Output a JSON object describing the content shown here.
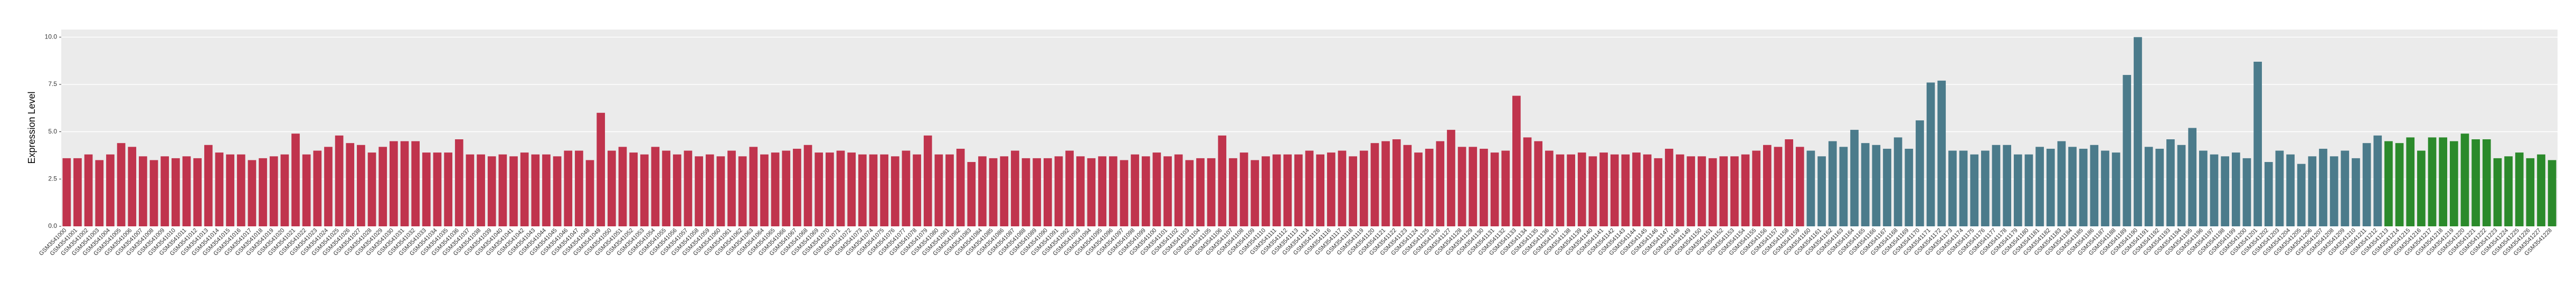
{
  "chart_data": {
    "type": "bar",
    "y_label": "Expression Level",
    "ylim": [
      0,
      10.4
    ],
    "yticks": [
      {
        "value": 0,
        "label": "0.0"
      },
      {
        "value": 2.5,
        "label": "2.5"
      },
      {
        "value": 5,
        "label": "5.0"
      },
      {
        "value": 7.5,
        "label": "7.5"
      },
      {
        "value": 10,
        "label": "10.0"
      }
    ],
    "grid": true,
    "categories": [
      "GSM3541000",
      "GSM3541001",
      "GSM3541002",
      "GSM3541003",
      "GSM3541004",
      "GSM3541005",
      "GSM3541006",
      "GSM3541007",
      "GSM3541008",
      "GSM3541009",
      "GSM3541010",
      "GSM3541011",
      "GSM3541012",
      "GSM3541013",
      "GSM3541014",
      "GSM3541015",
      "GSM3541016",
      "GSM3541017",
      "GSM3541018",
      "GSM3541019",
      "GSM3541020",
      "GSM3541021",
      "GSM3541022",
      "GSM3541023",
      "GSM3541024",
      "GSM3541025",
      "GSM3541026",
      "GSM3541027",
      "GSM3541028",
      "GSM3541029",
      "GSM3541030",
      "GSM3541031",
      "GSM3541032",
      "GSM3541033",
      "GSM3541034",
      "GSM3541035",
      "GSM3541036",
      "GSM3541037",
      "GSM3541038",
      "GSM3541039",
      "GSM3541040",
      "GSM3541041",
      "GSM3541042",
      "GSM3541043",
      "GSM3541044",
      "GSM3541045",
      "GSM3541046",
      "GSM3541047",
      "GSM3541048",
      "GSM3541049",
      "GSM3541050",
      "GSM3541051",
      "GSM3541052",
      "GSM3541053",
      "GSM3541054",
      "GSM3541055",
      "GSM3541056",
      "GSM3541057",
      "GSM3541058",
      "GSM3541059",
      "GSM3541060",
      "GSM3541061",
      "GSM3541062",
      "GSM3541063",
      "GSM3541064",
      "GSM3541065",
      "GSM3541066",
      "GSM3541067",
      "GSM3541068",
      "GSM3541069",
      "GSM3541070",
      "GSM3541071",
      "GSM3541072",
      "GSM3541073",
      "GSM3541074",
      "GSM3541075",
      "GSM3541076",
      "GSM3541077",
      "GSM3541078",
      "GSM3541079",
      "GSM3541080",
      "GSM3541081",
      "GSM3541082",
      "GSM3541083",
      "GSM3541084",
      "GSM3541085",
      "GSM3541086",
      "GSM3541087",
      "GSM3541088",
      "GSM3541089",
      "GSM3541090",
      "GSM3541091",
      "GSM3541092",
      "GSM3541093",
      "GSM3541094",
      "GSM3541095",
      "GSM3541096",
      "GSM3541097",
      "GSM3541098",
      "GSM3541099",
      "GSM3541100",
      "GSM3541101",
      "GSM3541102",
      "GSM3541103",
      "GSM3541104",
      "GSM3541105",
      "GSM3541106",
      "GSM3541107",
      "GSM3541108",
      "GSM3541109",
      "GSM3541110",
      "GSM3541111",
      "GSM3541112",
      "GSM3541113",
      "GSM3541114",
      "GSM3541115",
      "GSM3541116",
      "GSM3541117",
      "GSM3541118",
      "GSM3541119",
      "GSM3541120",
      "GSM3541121",
      "GSM3541122",
      "GSM3541123",
      "GSM3541124",
      "GSM3541125",
      "GSM3541126",
      "GSM3541127",
      "GSM3541128",
      "GSM3541129",
      "GSM3541130",
      "GSM3541131",
      "GSM3541132",
      "GSM3541133",
      "GSM3541134",
      "GSM3541135",
      "GSM3541136",
      "GSM3541137",
      "GSM3541138",
      "GSM3541139",
      "GSM3541140",
      "GSM3541141",
      "GSM3541142",
      "GSM3541143",
      "GSM3541144",
      "GSM3541145",
      "GSM3541146",
      "GSM3541147",
      "GSM3541148",
      "GSM3541149",
      "GSM3541150",
      "GSM3541151",
      "GSM3541152",
      "GSM3541153",
      "GSM3541154",
      "GSM3541155",
      "GSM3541156",
      "GSM3541157",
      "GSM3541158",
      "GSM3541159",
      "GSM3541160",
      "GSM3541161",
      "GSM3541162",
      "GSM3541163",
      "GSM3541164",
      "GSM3541165",
      "GSM3541166",
      "GSM3541167",
      "GSM3541168",
      "GSM3541169",
      "GSM3541170",
      "GSM3541171",
      "GSM3541172",
      "GSM3541173",
      "GSM3541174",
      "GSM3541175",
      "GSM3541176",
      "GSM3541177",
      "GSM3541178",
      "GSM3541179",
      "GSM3541180",
      "GSM3541181",
      "GSM3541182",
      "GSM3541183",
      "GSM3541184",
      "GSM3541185",
      "GSM3541186",
      "GSM3541187",
      "GSM3541188",
      "GSM3541189",
      "GSM3541190",
      "GSM3541191",
      "GSM3541192",
      "GSM3541193",
      "GSM3541194",
      "GSM3541195",
      "GSM3541196",
      "GSM3541197",
      "GSM3541198",
      "GSM3541199",
      "GSM3541200",
      "GSM3541201",
      "GSM3541202",
      "GSM3541203",
      "GSM3541204",
      "GSM3541205",
      "GSM3541206",
      "GSM3541207",
      "GSM3541208",
      "GSM3541209",
      "GSM3541210",
      "GSM3541211",
      "GSM3541212",
      "GSM3541213",
      "GSM3541214",
      "GSM3541215",
      "GSM3541216",
      "GSM3541217",
      "GSM3541218",
      "GSM3541219",
      "GSM3541220",
      "GSM3541221",
      "GSM3541222",
      "GSM3541223",
      "GSM3541224",
      "GSM3541225",
      "GSM3541226",
      "GSM3541227",
      "GSM3541228"
    ],
    "values": [
      3.6,
      3.6,
      3.8,
      3.5,
      3.8,
      4.4,
      4.2,
      3.7,
      3.5,
      3.7,
      3.6,
      3.7,
      3.6,
      4.3,
      3.9,
      3.8,
      3.8,
      3.5,
      3.6,
      3.7,
      3.8,
      4.9,
      3.8,
      4.0,
      4.2,
      4.8,
      4.4,
      4.3,
      3.9,
      4.2,
      4.5,
      4.5,
      4.5,
      3.9,
      3.9,
      3.9,
      4.6,
      3.8,
      3.8,
      3.7,
      3.8,
      3.7,
      3.9,
      3.8,
      3.8,
      3.7,
      4.0,
      4.0,
      3.5,
      6.0,
      4.0,
      4.2,
      3.9,
      3.8,
      4.2,
      4.0,
      3.8,
      4.0,
      3.7,
      3.8,
      3.7,
      4.0,
      3.7,
      4.2,
      3.8,
      3.9,
      4.0,
      4.1,
      4.3,
      3.9,
      3.9,
      4.0,
      3.9,
      3.8,
      3.8,
      3.8,
      3.7,
      4.0,
      3.8,
      4.8,
      3.8,
      3.8,
      4.1,
      3.4,
      3.7,
      3.6,
      3.7,
      4.0,
      3.6,
      3.6,
      3.6,
      3.7,
      4.0,
      3.7,
      3.6,
      3.7,
      3.7,
      3.5,
      3.8,
      3.7,
      3.9,
      3.7,
      3.8,
      3.5,
      3.6,
      3.6,
      4.8,
      3.6,
      3.9,
      3.5,
      3.7,
      3.8,
      3.8,
      3.8,
      4.0,
      3.8,
      3.9,
      4.0,
      3.7,
      4.0,
      4.4,
      4.5,
      4.6,
      4.3,
      3.9,
      4.1,
      4.5,
      5.1,
      4.2,
      4.2,
      4.1,
      3.9,
      4.0,
      6.9,
      4.7,
      4.5,
      4.0,
      3.8,
      3.8,
      3.9,
      3.7,
      3.9,
      3.8,
      3.8,
      3.9,
      3.8,
      3.6,
      4.1,
      3.8,
      3.7,
      3.7,
      3.6,
      3.7,
      3.7,
      3.8,
      4.0,
      4.3,
      4.2,
      4.6,
      4.2,
      4.0,
      3.7,
      4.5,
      4.2,
      5.1,
      4.4,
      4.3,
      4.1,
      4.7,
      4.1,
      5.6,
      7.6,
      7.7,
      4.0,
      4.0,
      3.8,
      4.0,
      4.3,
      4.3,
      3.8,
      3.8,
      4.2,
      4.1,
      4.5,
      4.2,
      4.1,
      4.3,
      4.0,
      3.9,
      8.0,
      10.0,
      4.2,
      4.1,
      4.6,
      4.3,
      5.2,
      4.0,
      3.8,
      3.7,
      3.9,
      3.6,
      8.7,
      3.4,
      4.0,
      3.8,
      3.3,
      3.7,
      4.1,
      3.7,
      4.0,
      3.6,
      4.4,
      4.8,
      4.5,
      4.4,
      4.7,
      4.0,
      4.7,
      4.7,
      4.5,
      4.9,
      4.6,
      4.6,
      3.6,
      3.7,
      3.9,
      3.6,
      3.8,
      3.5
    ],
    "colors": [
      "#c0344d",
      "#c0344d",
      "#c0344d",
      "#c0344d",
      "#c0344d",
      "#c0344d",
      "#c0344d",
      "#c0344d",
      "#c0344d",
      "#c0344d",
      "#c0344d",
      "#c0344d",
      "#c0344d",
      "#c0344d",
      "#c0344d",
      "#c0344d",
      "#c0344d",
      "#c0344d",
      "#c0344d",
      "#c0344d",
      "#c0344d",
      "#c0344d",
      "#c0344d",
      "#c0344d",
      "#c0344d",
      "#c0344d",
      "#c0344d",
      "#c0344d",
      "#c0344d",
      "#c0344d",
      "#c0344d",
      "#c0344d",
      "#c0344d",
      "#c0344d",
      "#c0344d",
      "#c0344d",
      "#c0344d",
      "#c0344d",
      "#c0344d",
      "#c0344d",
      "#c0344d",
      "#c0344d",
      "#c0344d",
      "#c0344d",
      "#c0344d",
      "#c0344d",
      "#c0344d",
      "#c0344d",
      "#c0344d",
      "#c0344d",
      "#c0344d",
      "#c0344d",
      "#c0344d",
      "#c0344d",
      "#c0344d",
      "#c0344d",
      "#c0344d",
      "#c0344d",
      "#c0344d",
      "#c0344d",
      "#c0344d",
      "#c0344d",
      "#c0344d",
      "#c0344d",
      "#c0344d",
      "#c0344d",
      "#c0344d",
      "#c0344d",
      "#c0344d",
      "#c0344d",
      "#c0344d",
      "#c0344d",
      "#c0344d",
      "#c0344d",
      "#c0344d",
      "#c0344d",
      "#c0344d",
      "#c0344d",
      "#c0344d",
      "#c0344d",
      "#c0344d",
      "#c0344d",
      "#c0344d",
      "#c0344d",
      "#c0344d",
      "#c0344d",
      "#c0344d",
      "#c0344d",
      "#c0344d",
      "#c0344d",
      "#c0344d",
      "#c0344d",
      "#c0344d",
      "#c0344d",
      "#c0344d",
      "#c0344d",
      "#c0344d",
      "#c0344d",
      "#c0344d",
      "#c0344d",
      "#c0344d",
      "#c0344d",
      "#c0344d",
      "#c0344d",
      "#c0344d",
      "#c0344d",
      "#c0344d",
      "#c0344d",
      "#c0344d",
      "#c0344d",
      "#c0344d",
      "#c0344d",
      "#c0344d",
      "#c0344d",
      "#c0344d",
      "#c0344d",
      "#c0344d",
      "#c0344d",
      "#c0344d",
      "#c0344d",
      "#c0344d",
      "#c0344d",
      "#c0344d",
      "#c0344d",
      "#c0344d",
      "#c0344d",
      "#c0344d",
      "#c0344d",
      "#c0344d",
      "#c0344d",
      "#c0344d",
      "#c0344d",
      "#c0344d",
      "#c0344d",
      "#c0344d",
      "#c0344d",
      "#c0344d",
      "#c0344d",
      "#c0344d",
      "#c0344d",
      "#c0344d",
      "#c0344d",
      "#c0344d",
      "#c0344d",
      "#c0344d",
      "#c0344d",
      "#c0344d",
      "#c0344d",
      "#c0344d",
      "#c0344d",
      "#c0344d",
      "#c0344d",
      "#c0344d",
      "#c0344d",
      "#c0344d",
      "#c0344d",
      "#c0344d",
      "#c0344d",
      "#c0344d",
      "#c0344d",
      "#4b7b8b",
      "#4b7b8b",
      "#4b7b8b",
      "#4b7b8b",
      "#4b7b8b",
      "#4b7b8b",
      "#4b7b8b",
      "#4b7b8b",
      "#4b7b8b",
      "#4b7b8b",
      "#4b7b8b",
      "#4b7b8b",
      "#4b7b8b",
      "#4b7b8b",
      "#4b7b8b",
      "#4b7b8b",
      "#4b7b8b",
      "#4b7b8b",
      "#4b7b8b",
      "#4b7b8b",
      "#4b7b8b",
      "#4b7b8b",
      "#4b7b8b",
      "#4b7b8b",
      "#4b7b8b",
      "#4b7b8b",
      "#4b7b8b",
      "#4b7b8b",
      "#4b7b8b",
      "#4b7b8b",
      "#4b7b8b",
      "#4b7b8b",
      "#4b7b8b",
      "#4b7b8b",
      "#4b7b8b",
      "#4b7b8b",
      "#4b7b8b",
      "#4b7b8b",
      "#4b7b8b",
      "#4b7b8b",
      "#4b7b8b",
      "#4b7b8b",
      "#4b7b8b",
      "#4b7b8b",
      "#4b7b8b",
      "#4b7b8b",
      "#4b7b8b",
      "#4b7b8b",
      "#4b7b8b",
      "#4b7b8b",
      "#4b7b8b",
      "#4b7b8b",
      "#4b7b8b",
      "#2b8a2b",
      "#2b8a2b",
      "#2b8a2b",
      "#2b8a2b",
      "#2b8a2b",
      "#2b8a2b",
      "#2b8a2b",
      "#2b8a2b",
      "#2b8a2b",
      "#2b8a2b",
      "#2b8a2b",
      "#2b8a2b",
      "#2b8a2b",
      "#2b8a2b",
      "#2b8a2b",
      "#2b8a2b"
    ]
  }
}
